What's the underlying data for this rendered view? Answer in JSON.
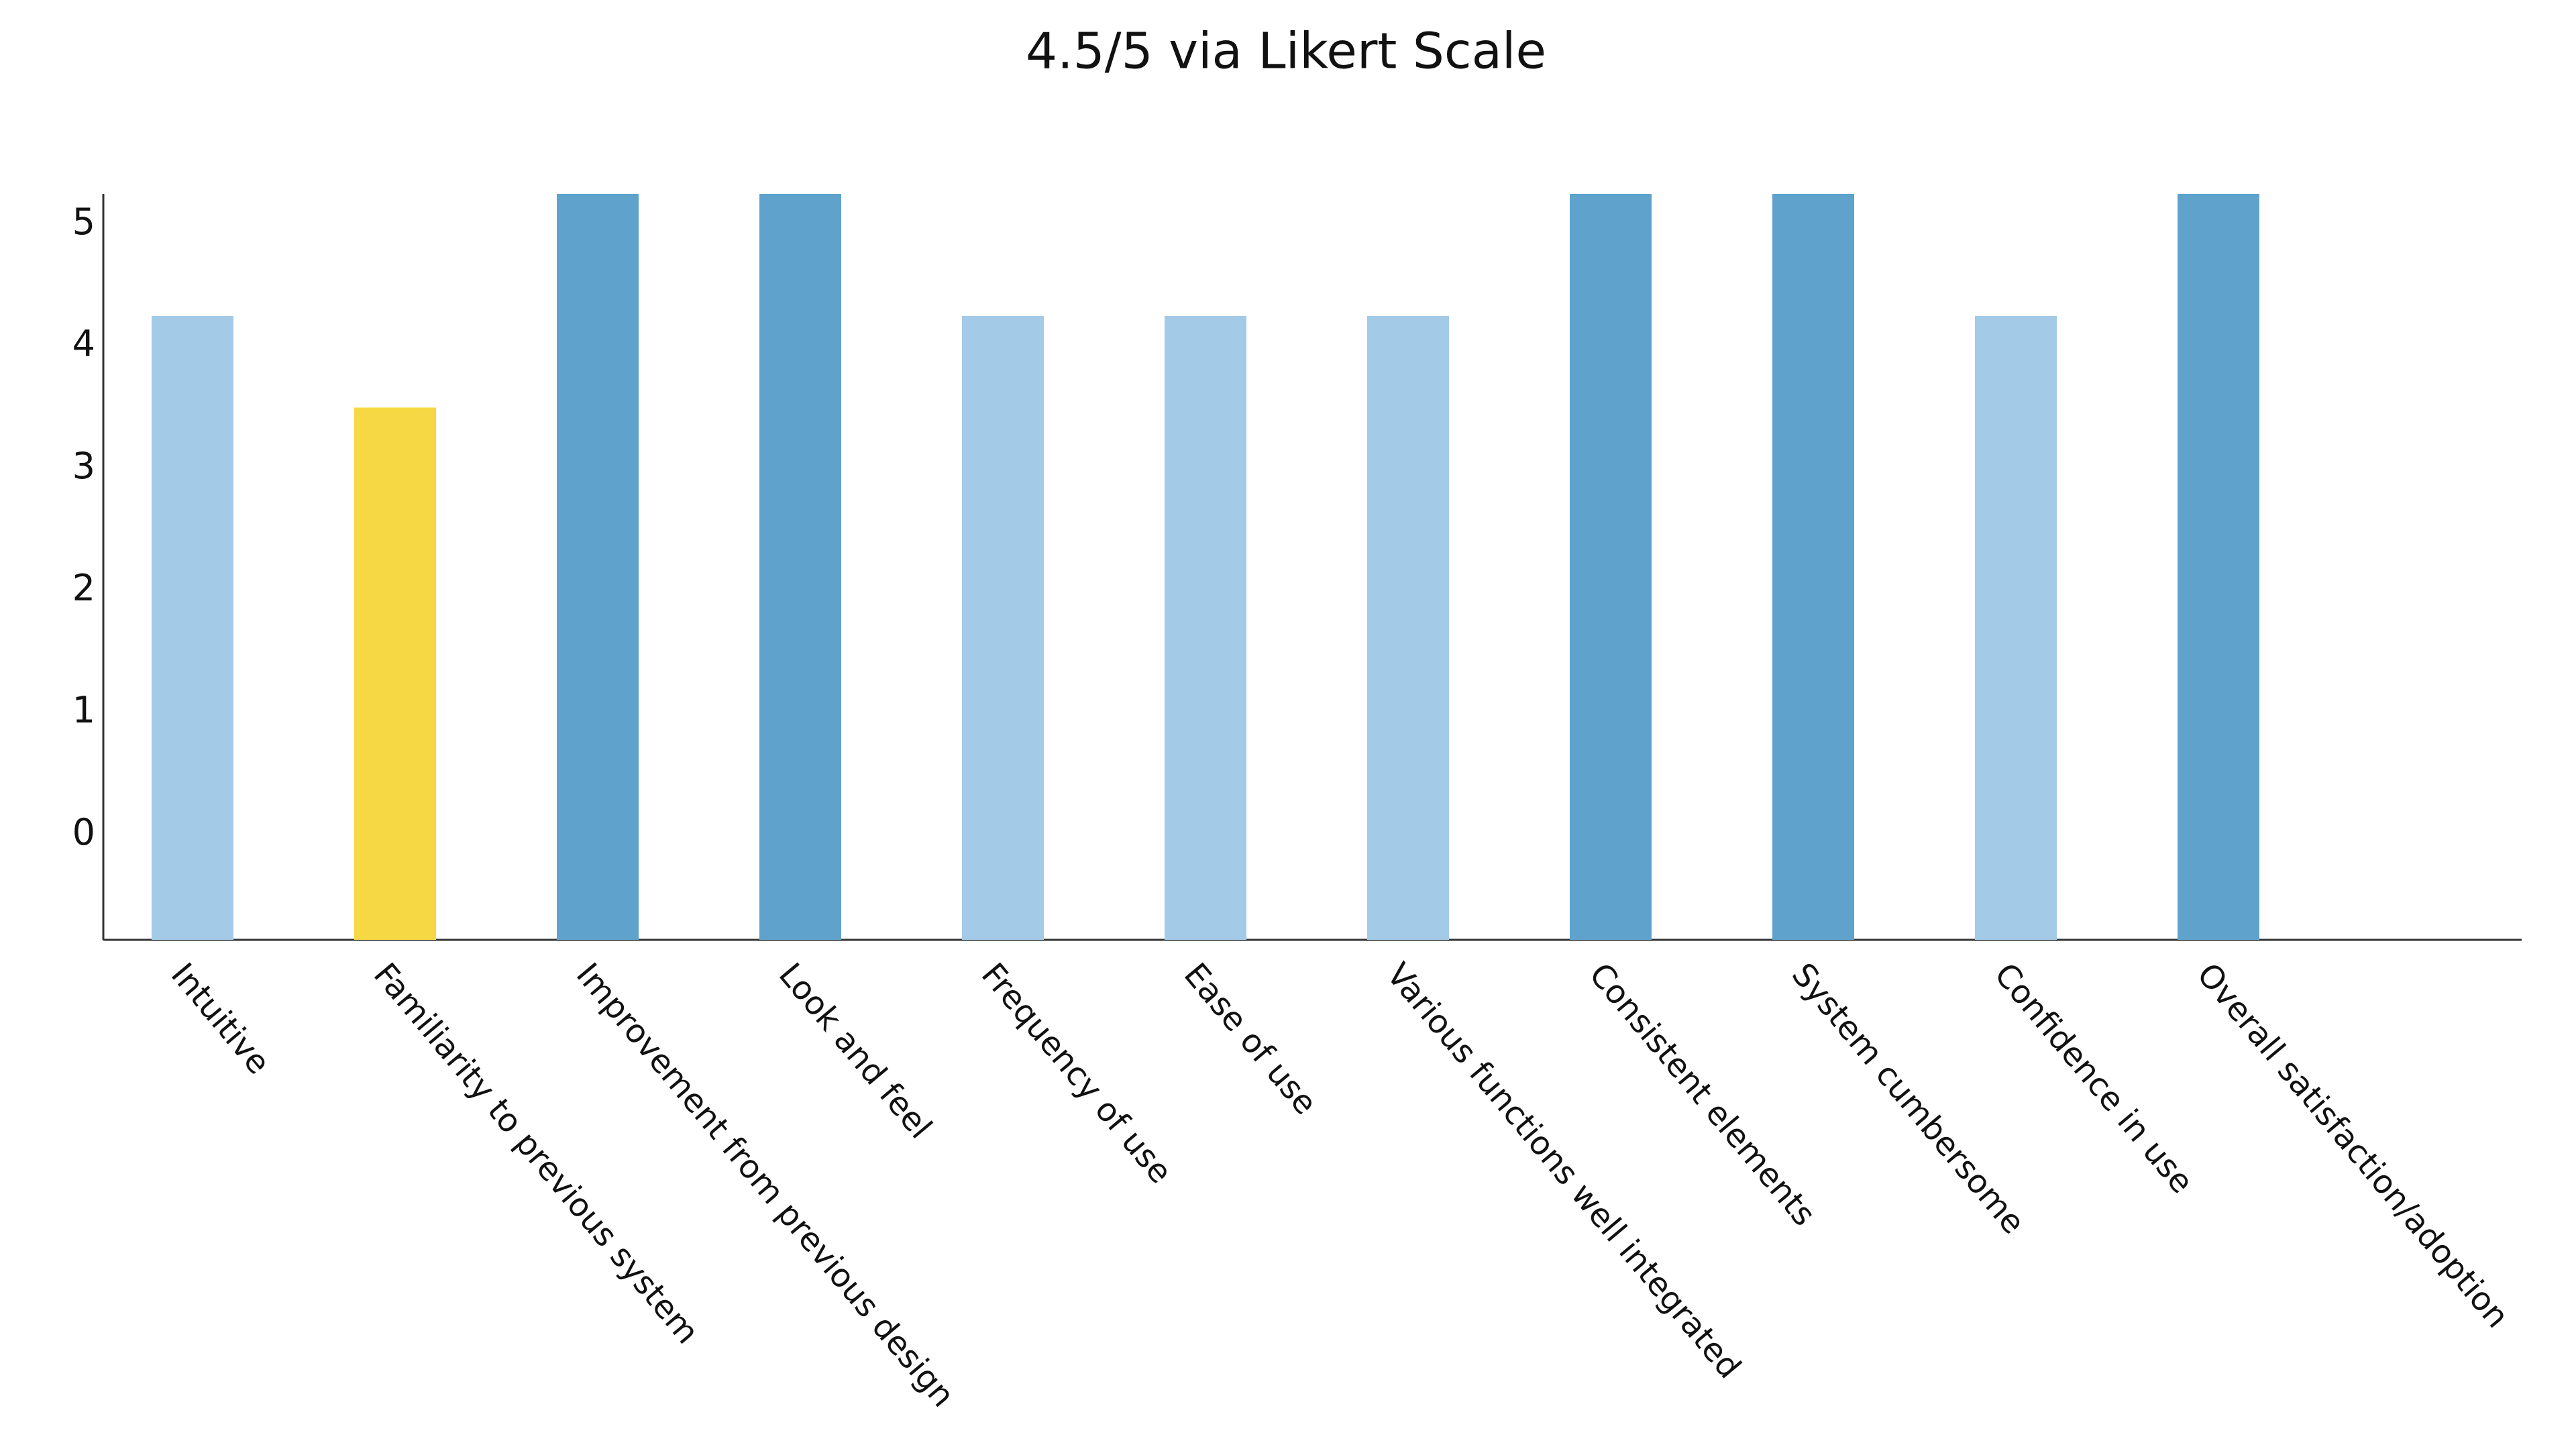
{
  "chart_data": {
    "type": "bar",
    "title": "4.5/5 via Likert Scale",
    "categories": [
      "Intuitive",
      "Familiarity to previous system",
      "Improvement from previous design",
      "Look and feel",
      "Frequency of use",
      "Ease of use",
      "Various functions well integrated",
      "Consistent elements",
      "System cumbersome",
      "Confidence in use",
      "Overall satisfaction/adoption"
    ],
    "values": [
      4.25,
      3.5,
      5.25,
      5.25,
      4.25,
      4.25,
      4.25,
      5.25,
      5.25,
      4.25,
      5.25
    ],
    "colors": [
      "#a3cae6",
      "#f5d844",
      "#5fa2cc",
      "#5fa2cc",
      "#a3cae6",
      "#a3cae6",
      "#a3cae6",
      "#5fa2cc",
      "#5fa2cc",
      "#a3cae6",
      "#5fa2cc"
    ],
    "ylim": [
      -0.86,
      5.25
    ],
    "yticks": [
      0,
      1,
      2,
      3,
      4,
      5
    ],
    "grid": false
  }
}
